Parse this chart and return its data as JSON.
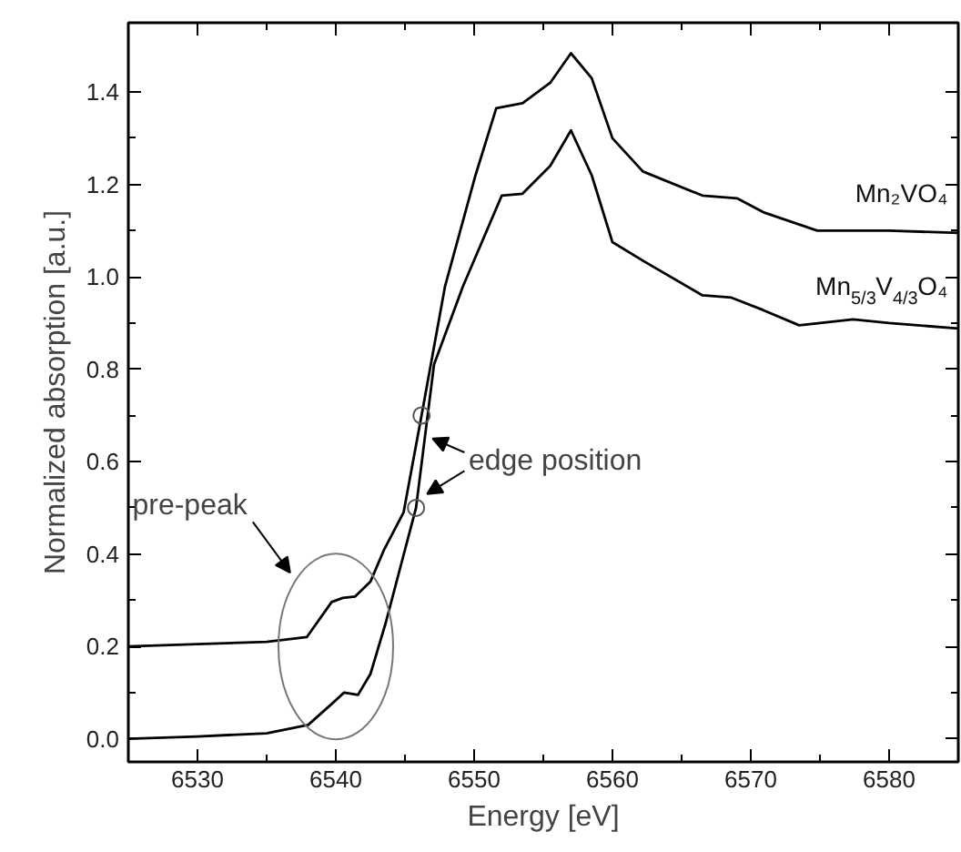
{
  "chart_data": {
    "type": "line",
    "xlabel": "Energy [eV]",
    "ylabel": "Normalized absorption [a.u.]",
    "xlim": [
      6525,
      6585
    ],
    "ylim": [
      -0.05,
      1.55
    ],
    "xticks": [
      6530,
      6540,
      6550,
      6560,
      6570,
      6580
    ],
    "yticks": [
      {
        "value": 0,
        "label": "0.0"
      },
      {
        "value": 0.2,
        "label": "0.2"
      },
      {
        "value": 0.4,
        "label": "0.4"
      },
      {
        "value": 0.6,
        "label": "0.6"
      },
      {
        "value": 0.8,
        "label": "0.8"
      },
      {
        "value": 1.0,
        "label": "1.0"
      },
      {
        "value": 1.2,
        "label": "1.2"
      },
      {
        "value": 1.4,
        "label": "1.4"
      }
    ],
    "grid": false,
    "legend": "right",
    "line_style": "solid",
    "series": [
      {
        "name": "Mn₂VO₄",
        "color": "#000000",
        "x": [
          6525,
          6530,
          6535,
          6537.9,
          6539.7,
          6540.5,
          6541.4,
          6542.5,
          6543.5,
          6544.9,
          6546.2,
          6547.9,
          6550.1,
          6551.6,
          6553.5,
          6555.5,
          6557.0,
          6558.5,
          6560.0,
          6562.2,
          6566.5,
          6569.0,
          6570.9,
          6574.8,
          6580,
          6585
        ],
        "values": [
          0.2,
          0.205,
          0.21,
          0.22,
          0.296,
          0.305,
          0.308,
          0.34,
          0.41,
          0.49,
          0.7,
          0.98,
          1.22,
          1.365,
          1.376,
          1.42,
          1.484,
          1.43,
          1.3,
          1.228,
          1.176,
          1.17,
          1.14,
          1.1,
          1.1,
          1.095
        ]
      },
      {
        "name": "Mn$_{5/3}$V$_{4/3}$O₄",
        "color": "#000000",
        "x": [
          6525,
          6530,
          6535,
          6538,
          6539.5,
          6540.6,
          6541.6,
          6542.5,
          6543.6,
          6545.8,
          6547.1,
          6549.2,
          6552.0,
          6553.5,
          6555.5,
          6557.0,
          6558.5,
          6560.0,
          6562.2,
          6566.5,
          6568.6,
          6570.9,
          6573.5,
          6577.4,
          6580,
          6585
        ],
        "values": [
          0.0,
          0.005,
          0.012,
          0.03,
          0.07,
          0.1,
          0.095,
          0.14,
          0.25,
          0.5,
          0.81,
          0.98,
          1.176,
          1.18,
          1.24,
          1.317,
          1.22,
          1.075,
          1.035,
          0.96,
          0.955,
          0.928,
          0.895,
          0.908,
          0.9,
          0.888
        ]
      },
      {
        "type": "scatter",
        "marker": "circle",
        "color": "#555555",
        "x": [
          6546.2,
          6545.8
        ],
        "values": [
          0.7,
          0.5
        ]
      }
    ],
    "annotations": [
      "pre-peak",
      {
        "text": "edge position",
        "x": 6546,
        "y": 0.6
      }
    ]
  }
}
